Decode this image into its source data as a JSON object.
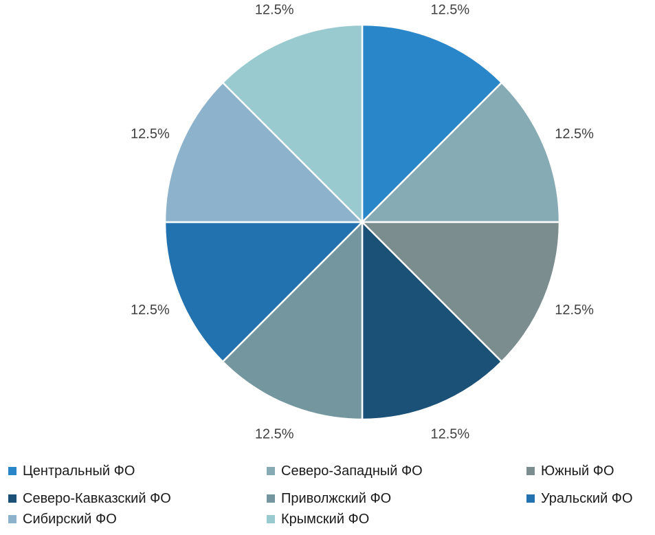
{
  "chart_data": {
    "type": "pie",
    "title": "",
    "start_angle_deg": 0,
    "direction": "clockwise",
    "legend_position": "bottom",
    "slices": [
      {
        "name": "Центральный ФО",
        "value": 12.5,
        "label": "12.5%",
        "color": "#2986C8"
      },
      {
        "name": "Северо-Западный ФО",
        "value": 12.5,
        "label": "12.5%",
        "color": "#86ABB4"
      },
      {
        "name": "Южный ФО",
        "value": 12.5,
        "label": "12.5%",
        "color": "#7C8D8F"
      },
      {
        "name": "Северо-Кавказский ФО",
        "value": 12.5,
        "label": "12.5%",
        "color": "#1B5077"
      },
      {
        "name": "Приволжский ФО",
        "value": 12.5,
        "label": "12.5%",
        "color": "#74979F"
      },
      {
        "name": "Уральский ФО",
        "value": 12.5,
        "label": "12.5%",
        "color": "#2272B0"
      },
      {
        "name": "Сибирский ФО",
        "value": 12.5,
        "label": "12.5%",
        "color": "#8DB3CC"
      },
      {
        "name": "Крымский ФО",
        "value": 12.5,
        "label": "12.5%",
        "color": "#98CAD0"
      }
    ]
  }
}
